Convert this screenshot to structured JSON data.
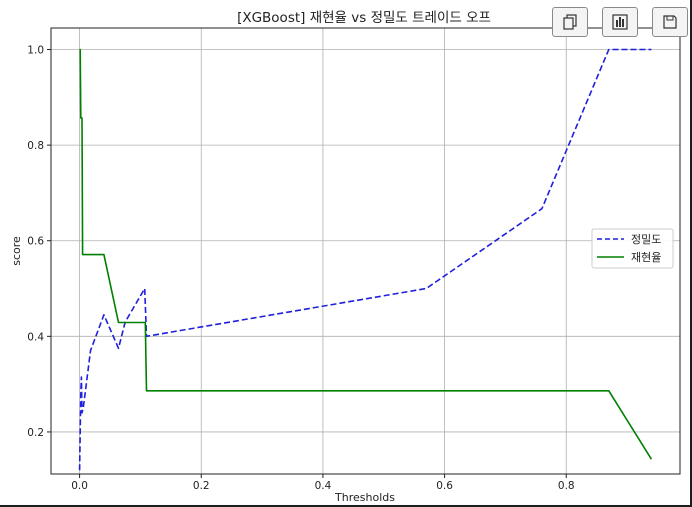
{
  "toolbar": {
    "buttons": [
      {
        "name": "copy-button",
        "icon": "copy-icon"
      },
      {
        "name": "chart-button",
        "icon": "bar-chart-icon"
      },
      {
        "name": "save-button",
        "icon": "save-icon"
      }
    ]
  },
  "chart_data": {
    "type": "line",
    "title": "[XGBoost] 재현율 vs 정밀도 트레이드 오프",
    "xlabel": "Thresholds",
    "ylabel": "score",
    "xlim": [
      -0.047,
      0.987
    ],
    "ylim": [
      0.112,
      1.045
    ],
    "xticks": [
      0.0,
      0.2,
      0.4,
      0.6,
      0.8
    ],
    "xtick_labels": [
      "0.0",
      "0.2",
      "0.4",
      "0.6",
      "0.8"
    ],
    "yticks": [
      0.2,
      0.4,
      0.6,
      0.8,
      1.0
    ],
    "ytick_labels": [
      "0.2",
      "0.4",
      "0.6",
      "0.8",
      "1.0"
    ],
    "grid": true,
    "legend_position": "center-right",
    "series": [
      {
        "name": "정밀도",
        "color": "#1f1fdd",
        "style": "dashed",
        "x": [
          0.0,
          0.002,
          0.003,
          0.004,
          0.006,
          0.009,
          0.018,
          0.04,
          0.064,
          0.075,
          0.107,
          0.11,
          0.57,
          0.76,
          0.87,
          0.94
        ],
        "y": [
          0.12,
          0.28,
          0.315,
          0.24,
          0.25,
          0.28,
          0.37,
          0.445,
          0.375,
          0.43,
          0.5,
          0.4,
          0.5,
          0.667,
          1.0,
          1.0
        ]
      },
      {
        "name": "재현율",
        "color": "#008000",
        "style": "solid",
        "x": [
          0.0,
          0.001,
          0.002,
          0.004,
          0.005,
          0.04,
          0.064,
          0.107,
          0.108,
          0.11,
          0.87,
          0.94
        ],
        "y": [
          1.0,
          1.0,
          0.857,
          0.857,
          0.571,
          0.571,
          0.429,
          0.429,
          0.429,
          0.286,
          0.286,
          0.143
        ]
      }
    ]
  }
}
